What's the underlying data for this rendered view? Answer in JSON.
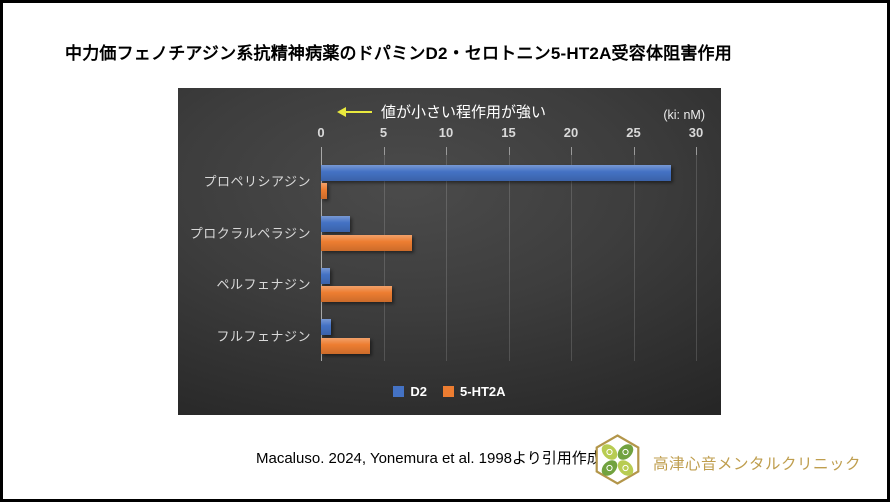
{
  "page": {
    "title": "中力価フェノチアジン系抗精神病薬のドパミンD2・セロトニン5-HT2A受容体阻害作用"
  },
  "chart_data": {
    "type": "bar",
    "orientation": "horizontal",
    "annotation": "値が小さい程作用が強い",
    "axis_unit_label": "(ki: nM)",
    "categories": [
      "プロペリシアジン",
      "プロクラルペラジン",
      "ペルフェナジン",
      "フルフェナジン"
    ],
    "series": [
      {
        "name": "D2",
        "color": "#4472C4",
        "values": [
          28,
          2.3,
          0.7,
          0.8
        ]
      },
      {
        "name": "5-HT2A",
        "color": "#ED7D31",
        "values": [
          0.5,
          7.3,
          5.7,
          3.9
        ]
      }
    ],
    "xlim": [
      0,
      30
    ],
    "xticks": [
      0,
      5,
      10,
      15,
      20,
      25,
      30
    ],
    "grid": true,
    "legend_position": "bottom",
    "panel_background": "#3d3d3d",
    "annotation_arrow_color": "#e9e93e",
    "tick_label_color": "#d9d9d9"
  },
  "footer": {
    "citation": "Macaluso. 2024, Yonemura et al. 1998より引用作成",
    "clinic_name": "高津心音メンタルクリニック",
    "brand_gold": "#bf9e4e",
    "brand_green_light": "#b8cc52",
    "brand_green_dark": "#71a23f"
  }
}
